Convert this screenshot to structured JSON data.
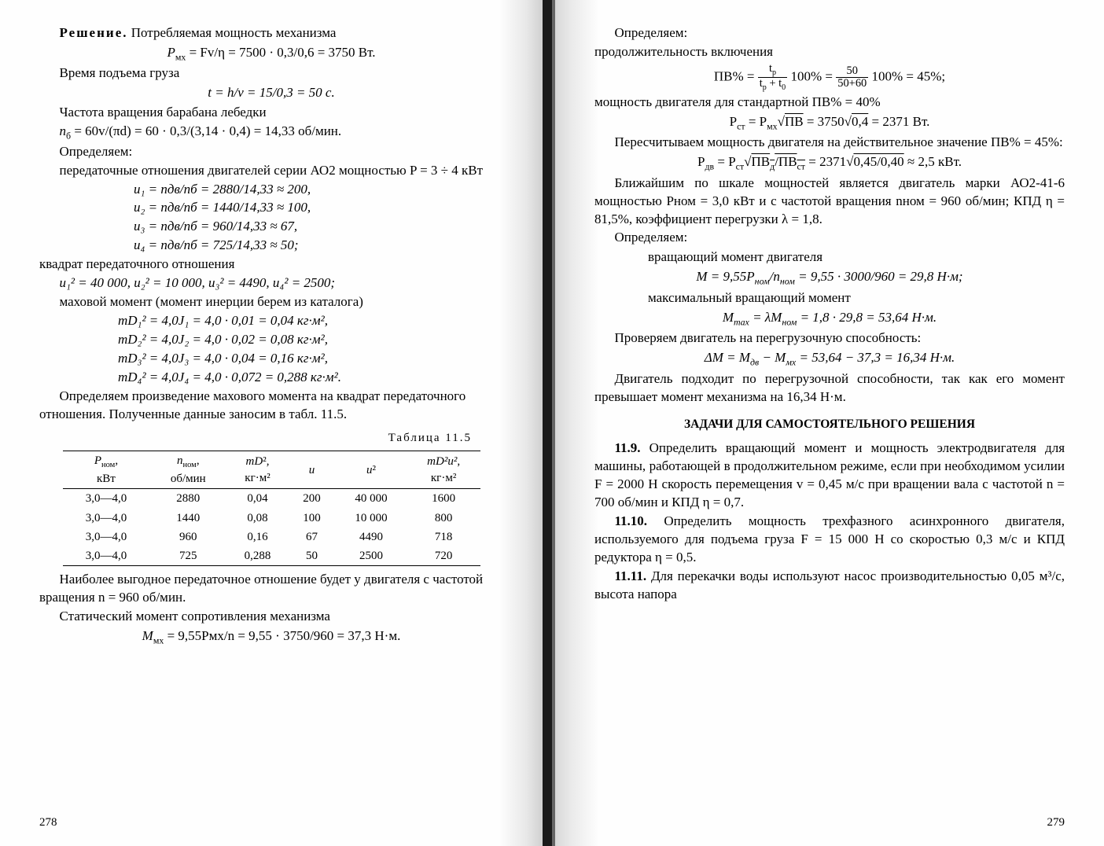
{
  "left": {
    "solution_label": "Решение.",
    "p1": " Потребляемая мощность механизма",
    "eq1": "P",
    "eq1_sub": "мх",
    "eq1_rest": " = Fv/η = 7500 · 0,3/0,6 = 3750 Вт.",
    "p2": "Время подъема груза",
    "eq2": "t = h/v = 15/0,3 = 50 с.",
    "p3": "Частота вращения барабана лебедки",
    "eq3_pre": "n",
    "eq3_sub": "б",
    "eq3_rest": " = 60v/(πd) = 60 · 0,3/(3,14 · 0,4) = 14,33 об/мин.",
    "p4a": "Определяем:",
    "p4b": "передаточные отношения двигателей серии АО2 мощностью  P = 3 ÷ 4 кВт",
    "u_lines": [
      "u₁ = nдв/nб = 2880/14,33 ≈ 200,",
      "u₂ = nдв/nб = 1440/14,33 ≈ 100,",
      "u₃ = nдв/nб = 960/14,33 ≈ 67,",
      "u₄ = nдв/nб = 725/14,33 ≈ 50;"
    ],
    "p5": "квадрат передаточного отношения",
    "eq5": "u₁² = 40 000,  u₂² = 10 000,  u₃² = 4490,  u₄² = 2500;",
    "p6": "маховой момент (момент инерции берем из каталога)",
    "md_lines": [
      "mD₁² = 4,0J₁ = 4,0 · 0,01 = 0,04 кг·м²,",
      "mD₂² = 4,0J₂ = 4,0 · 0,02 = 0,08 кг·м²,",
      "mD₃² = 4,0J₃ = 4,0 · 0,04 = 0,16 кг·м²,",
      "mD₄² = 4,0J₄ = 4,0 · 0,072 = 0,288 кг·м²."
    ],
    "p7": "Определяем произведение махового момента на квадрат передаточного отношения. Полученные данные заносим в табл. 11.5.",
    "table_caption": "Таблица 11.5",
    "table": {
      "headers": [
        "Pном, кВт",
        "nном, об/мин",
        "mD², кг·м²",
        "u",
        "u²",
        "mD²u², кг·м²"
      ],
      "rows": [
        [
          "3,0—4,0",
          "2880",
          "0,04",
          "200",
          "40 000",
          "1600"
        ],
        [
          "3,0—4,0",
          "1440",
          "0,08",
          "100",
          "10 000",
          "800"
        ],
        [
          "3,0—4,0",
          "960",
          "0,16",
          "67",
          "4490",
          "718"
        ],
        [
          "3,0—4,0",
          "725",
          "0,288",
          "50",
          "2500",
          "720"
        ]
      ]
    },
    "p8": "Наиболее выгодное передаточное отношение будет у двигателя с частотой вращения n = 960 об/мин.",
    "p9": "Статический момент сопротивления механизма",
    "eq9_pre": "M",
    "eq9_sub": "мх",
    "eq9_rest": " = 9,55Pмх/n = 9,55 · 3750/960 = 37,3 Н·м.",
    "page_no": "278"
  },
  "right": {
    "p1a": "Определяем:",
    "p1b": "продолжительность включения",
    "eq1_html": "ПВ% = <span class='frac'><span class='top'>t<sub>р</sub></span><span class='bot'>t<sub>р</sub> + t<sub>0</sub></span></span> 100% = <span class='frac'><span class='top'>50</span><span class='bot'>50+60</span></span> 100% = 45%;",
    "p2": "мощность двигателя для стандартной ПВ% = 40%",
    "eq2_html": "P<sub>ст</sub> = P<sub>мх</sub>√<span style='text-decoration:overline'>ПВ</span> = 3750√<span style='text-decoration:overline'>0,4</span> = 2371 Вт.",
    "p3": "Пересчитываем мощность двигателя на действительное значение ПВ% = 45%:",
    "eq3_html": "P<sub>дв</sub> = P<sub>ст</sub>√<span style='text-decoration:overline'>ПВ<sub>д</sub>/ПВ<sub>ст</sub></span> = 2371√<span style='text-decoration:overline'>0,45/0,40</span> ≈ 2,5 кВт.",
    "p4": "Ближайшим по шкале мощностей является двигатель марки АО2-41-6 мощностью Pном = 3,0 кВт и с частотой вращения nном = 960 об/мин; КПД η = 81,5%, коэффициент перегрузки λ = 1,8.",
    "p5a": "Определяем:",
    "p5b": "вращающий момент двигателя",
    "eq5_html": "M = 9,55P<sub>ном</sub>/n<sub>ном</sub> = 9,55 · 3000/960 = 29,8 Н·м;",
    "p6": "максимальный вращающий момент",
    "eq6_html": "M<sub>max</sub> = λM<sub>ном</sub> = 1,8 · 29,8 = 53,64 Н·м.",
    "p7": "Проверяем двигатель на перегрузочную способность:",
    "eq7_html": "ΔM = M<sub>дв</sub> − M<sub>мх</sub> = 53,64 − 37,3 = 16,34 Н·м.",
    "p8": "Двигатель подходит по перегрузочной способности, так как его момент превышает момент механизма на 16,34 Н·м.",
    "section": "ЗАДАЧИ ДЛЯ САМОСТОЯТЕЛЬНОГО РЕШЕНИЯ",
    "t119": "11.9. Определить вращающий момент и мощность электродвигателя для машины, работающей в продолжительном режиме, если при необходимом усилии F = 2000 Н  скорость  перемещения  v = 0,45 м/с  при вращении вала с частотой n = 700 об/мин и КПД η = 0,7.",
    "t1110": "11.10. Определить мощность трехфазного асинхронного двигателя, используемого для подъема груза F = 15 000 Н со скоростью 0,3 м/с и КПД редуктора η = 0,5.",
    "t1111": "11.11. Для перекачки воды используют насос производительностью  0,05 м³/с,  высота  напора",
    "page_no": "279"
  }
}
